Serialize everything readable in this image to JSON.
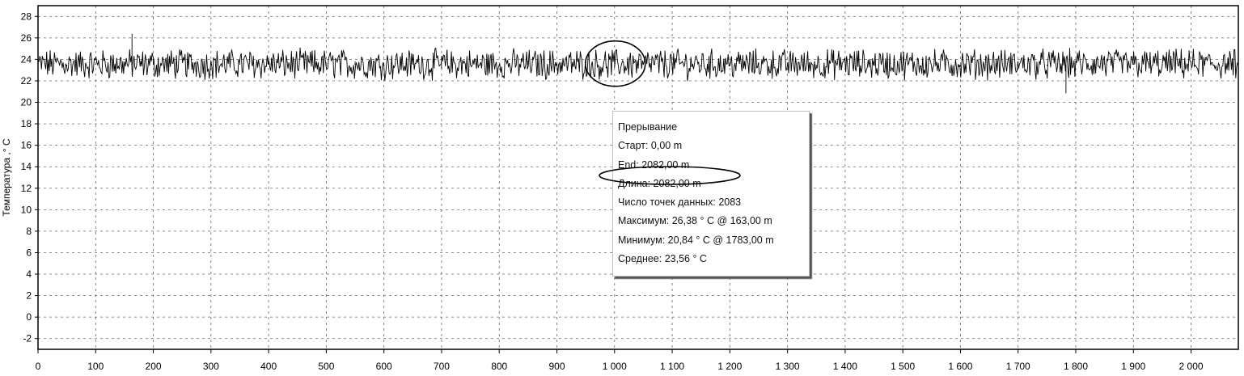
{
  "chart_data": {
    "type": "line",
    "xlabel": "",
    "ylabel": "Температура ,° C",
    "xlim": [
      0,
      2082
    ],
    "ylim": [
      -3,
      29
    ],
    "x_ticks": [
      0,
      100,
      200,
      300,
      400,
      500,
      600,
      700,
      800,
      900,
      1000,
      1100,
      1200,
      1300,
      1400,
      1500,
      1600,
      1700,
      1800,
      1900,
      2000
    ],
    "x_tick_labels": [
      "0",
      "100",
      "200",
      "300",
      "400",
      "500",
      "600",
      "700",
      "800",
      "900",
      "1 000",
      "1 100",
      "1 200",
      "1 300",
      "1 400",
      "1 500",
      "1 600",
      "1 700",
      "1 800",
      "1 900",
      "2 000"
    ],
    "y_ticks": [
      -2,
      0,
      2,
      4,
      6,
      8,
      10,
      12,
      14,
      16,
      18,
      20,
      22,
      24,
      26,
      28
    ],
    "y_tick_labels": [
      "-2",
      "0",
      "2",
      "4",
      "6",
      "8",
      "10",
      "12",
      "14",
      "16",
      "18",
      "20",
      "22",
      "24",
      "26",
      "28"
    ],
    "grid": true,
    "series": [
      {
        "color": "#000000",
        "x": [
          0,
          50,
          100,
          150,
          163,
          200,
          250,
          300,
          350,
          400,
          450,
          500,
          550,
          600,
          650,
          700,
          750,
          800,
          850,
          900,
          950,
          1000,
          1050,
          1100,
          1150,
          1200,
          1250,
          1300,
          1350,
          1400,
          1450,
          1500,
          1550,
          1600,
          1650,
          1700,
          1750,
          1783,
          1800,
          1850,
          1900,
          1950,
          2000,
          2050,
          2082
        ],
        "y": [
          24.0,
          23.4,
          23.6,
          23.8,
          26.38,
          24.2,
          23.5,
          23.9,
          23.7,
          24.1,
          23.2,
          23.4,
          23.8,
          23.3,
          23.6,
          23.1,
          23.5,
          23.4,
          23.9,
          23.7,
          23.8,
          23.2,
          23.5,
          23.6,
          23.3,
          23.4,
          23.7,
          23.5,
          23.2,
          24.1,
          23.8,
          23.6,
          23.5,
          23.3,
          23.7,
          23.8,
          23.4,
          20.84,
          23.9,
          24.3,
          23.6,
          23.4,
          23.8,
          23.5,
          23.6
        ]
      }
    ],
    "annotations": {
      "circle_center": [
        1000,
        23.6
      ],
      "tooltip_lines": [
        "Прерывание",
        "Старт: 0,00 m",
        "End: 2082,00 m",
        "Длина: 2082,00 m",
        "Число точек данных: 2083",
        "Максимум: 26,38 ° C @ 163,00 m",
        "Минимум: 20,84 ° C @ 1783,00 m",
        "Среднее: 23,56 ° C"
      ]
    }
  }
}
